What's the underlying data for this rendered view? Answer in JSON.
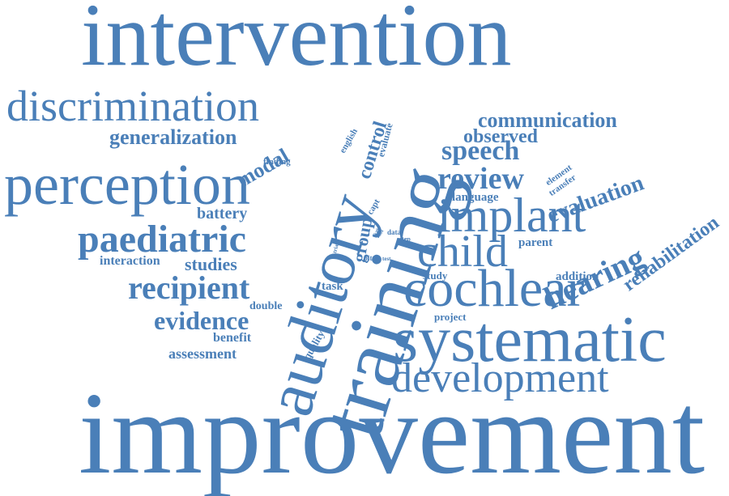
{
  "style": {
    "word_color": "#4a7fb8",
    "background": "#ffffff"
  },
  "words": {
    "improvement": "improvement",
    "intervention": "intervention",
    "training": "training",
    "auditory": "auditory",
    "systematic": "systematic",
    "cochlear": "cochlear",
    "perception": "perception",
    "discrimination": "discrimination",
    "implant": "implant",
    "development": "development",
    "child": "child",
    "paediatric": "paediatric",
    "recipient": "recipient",
    "hearing": "hearing",
    "review": "review",
    "speech": "speech",
    "evidence": "evidence",
    "communication": "communication",
    "generalization": "generalization",
    "evaluation": "evaluation",
    "rehabilitation": "rehabilitation",
    "observed": "observed",
    "modal": "modal",
    "control": "control",
    "battery": "battery",
    "studies": "studies",
    "group": "group",
    "assessment": "assessment",
    "interaction": "interaction",
    "benefit": "benefit",
    "language": "language",
    "parent": "parent",
    "addition": "addition",
    "task": "task",
    "double": "double",
    "study": "study",
    "project": "project",
    "quality": "quality",
    "english": "english",
    "evaluate": "evaluate",
    "finding": "finding",
    "element": "element",
    "transfer": "transfer",
    "capt": "capt",
    "data": "data",
    "step": "step",
    "pitch": "pitch",
    "test": "test",
    "trial": "trial",
    "bias": "bias",
    "aid": "aid"
  }
}
